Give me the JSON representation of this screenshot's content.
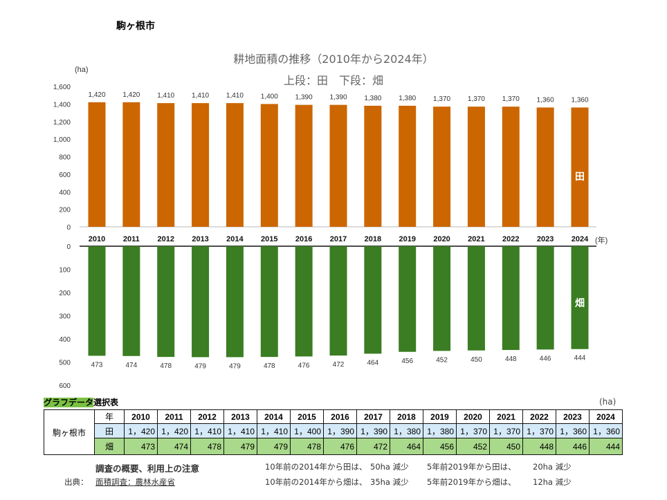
{
  "city_title": "駒ヶ根市",
  "chart_data": {
    "type": "bar",
    "title": "耕地面積の推移（2010年から2024年）",
    "subtitle": "上段：田　下段：畑",
    "ylabel": "(ha)",
    "xlabel": "(年)",
    "categories": [
      "2010",
      "2011",
      "2012",
      "2013",
      "2014",
      "2015",
      "2016",
      "2017",
      "2018",
      "2019",
      "2020",
      "2021",
      "2022",
      "2023",
      "2024"
    ],
    "series": [
      {
        "name": "田",
        "color": "#cc6600",
        "ylim": [
          0,
          1600
        ],
        "ticks": [
          "0",
          "200",
          "400",
          "600",
          "800",
          "1,000",
          "1,200",
          "1,400",
          "1,600"
        ],
        "values": [
          1420,
          1420,
          1410,
          1410,
          1410,
          1400,
          1390,
          1390,
          1380,
          1380,
          1370,
          1370,
          1370,
          1360,
          1360
        ],
        "labels": [
          "1,420",
          "1,420",
          "1,410",
          "1,410",
          "1,410",
          "1,400",
          "1,390",
          "1,390",
          "1,380",
          "1,380",
          "1,370",
          "1,370",
          "1,370",
          "1,360",
          "1,360"
        ]
      },
      {
        "name": "畑",
        "color": "#3a7d22",
        "ylim": [
          0,
          600
        ],
        "inverted": true,
        "ticks": [
          "0",
          "100",
          "200",
          "300",
          "400",
          "500",
          "600"
        ],
        "values": [
          473,
          474,
          478,
          479,
          479,
          478,
          476,
          472,
          464,
          456,
          452,
          450,
          448,
          446,
          444
        ],
        "labels": [
          "473",
          "474",
          "478",
          "479",
          "479",
          "478",
          "476",
          "472",
          "464",
          "456",
          "452",
          "450",
          "448",
          "446",
          "444"
        ]
      }
    ]
  },
  "table": {
    "caption_highlight": "グラフデータ",
    "caption_rest": "選択表",
    "unit": "(ha)",
    "city": "駒ヶ根市",
    "year_header": "年",
    "rice_header": "田",
    "field_header": "畑",
    "years": [
      "2010",
      "2011",
      "2012",
      "2013",
      "2014",
      "2015",
      "2016",
      "2017",
      "2018",
      "2019",
      "2020",
      "2021",
      "2022",
      "2023",
      "2024"
    ],
    "rice": [
      "1，420",
      "1，420",
      "1，410",
      "1，410",
      "1，410",
      "1，400",
      "1，390",
      "1，390",
      "1，380",
      "1，380",
      "1，370",
      "1，370",
      "1，370",
      "1，360",
      "1，360"
    ],
    "field": [
      "473",
      "474",
      "478",
      "479",
      "479",
      "478",
      "476",
      "472",
      "464",
      "456",
      "452",
      "450",
      "448",
      "446",
      "444"
    ]
  },
  "notes": {
    "overview_link": "調査の概要、利用上の注意",
    "source_label": "出典：",
    "source_link": "面積調査：農林水産省",
    "rice10": "10年前の2014年から田は、",
    "rice10_val": "50ha 減少",
    "field10": "10年前の2014年から畑は、",
    "field10_val": "35ha 減少",
    "rice5": "5年前2019年から田は、",
    "rice5_val": "20ha 減少",
    "field5": "5年前2019年から畑は、",
    "field5_val": "12ha 減少"
  }
}
